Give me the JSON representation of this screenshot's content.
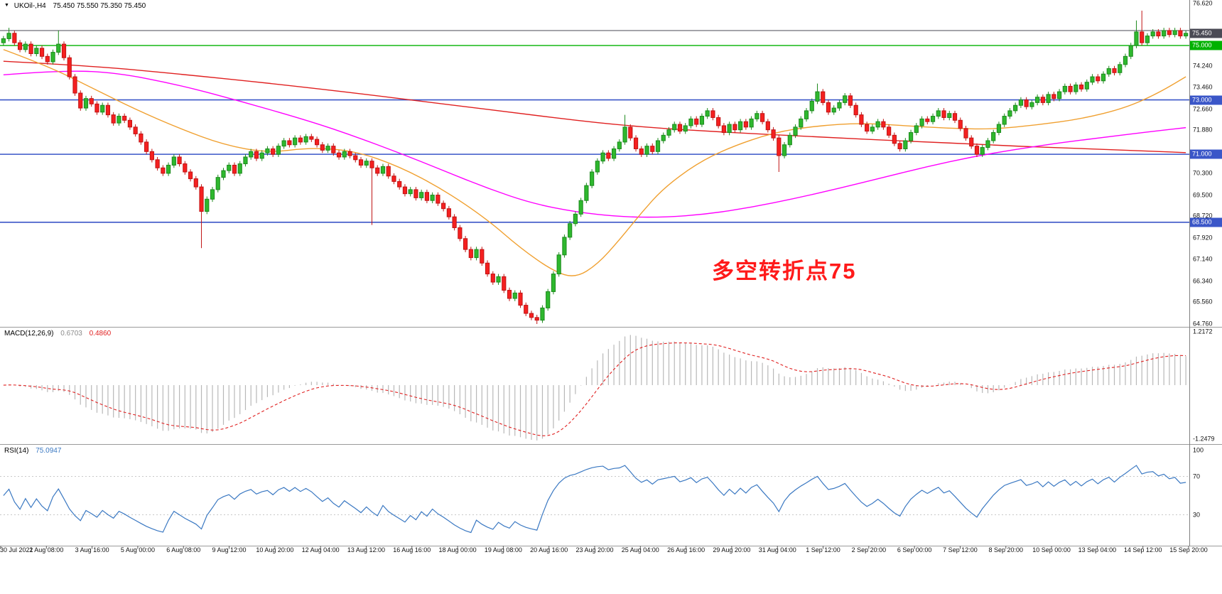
{
  "main_pane": {
    "header": {
      "collapse_icon": "▼",
      "symbol": "UKOil-,H4",
      "ohlc": "75.450 75.550 75.350 75.450"
    },
    "annotation": {
      "text": "多空转折点75"
    }
  },
  "colors": {
    "background": "#ffffff",
    "axis_text": "#111111",
    "separator": "#9a9a9a",
    "axis_border": "#808080",
    "candle_up": "#2eb82e",
    "candle_up_border": "#1d8a1d",
    "candle_down": "#f52020",
    "candle_down_border": "#c01414",
    "current_badge_bg": "#4a4a55",
    "macd_hist": "#b8b8b8",
    "macd_signal": "#e02020",
    "macd_value_main": "#8a8a8a",
    "rsi_line": "#3a78c2",
    "rsi_level": "#c8c8c8",
    "annotation": "#ff1a1a"
  },
  "chart_data": {
    "type": "candlestick",
    "symbol": "UKOil-",
    "timeframe": "H4",
    "x_labels": [
      "30 Jul 2021",
      "2 Aug 08:00",
      "3 Aug 16:00",
      "5 Aug 00:00",
      "6 Aug 08:00",
      "9 Aug 12:00",
      "10 Aug 20:00",
      "12 Aug 04:00",
      "13 Aug 12:00",
      "16 Aug 16:00",
      "18 Aug 00:00",
      "19 Aug 08:00",
      "20 Aug 16:00",
      "23 Aug 20:00",
      "25 Aug 04:00",
      "26 Aug 16:00",
      "29 Aug 20:00",
      "31 Aug 04:00",
      "1 Sep 12:00",
      "2 Sep 20:00",
      "6 Sep 00:00",
      "7 Sep 12:00",
      "8 Sep 20:00",
      "10 Sep 00:00",
      "13 Sep 04:00",
      "14 Sep 12:00",
      "15 Sep 20:00"
    ],
    "price_pane": {
      "ylim": [
        64.76,
        76.62
      ],
      "axis_labels": [
        "76.620",
        "74.240",
        "73.460",
        "72.660",
        "71.880",
        "70.300",
        "69.500",
        "68.720",
        "67.920",
        "67.140",
        "66.340",
        "65.560",
        "64.760"
      ],
      "current_price": 75.45,
      "current_price_label": "75.450",
      "hlines": [
        {
          "price": 75.55,
          "color": "#4a4a55",
          "width": 1,
          "label": null
        },
        {
          "price": 75.0,
          "color": "#00b200",
          "width": 1.4,
          "label": "75.000"
        },
        {
          "price": 73.0,
          "color": "#3a56c8",
          "width": 1.6,
          "label": "73.000"
        },
        {
          "price": 71.0,
          "color": "#3a56c8",
          "width": 1.6,
          "label": "71.000"
        },
        {
          "price": 68.5,
          "color": "#3a56c8",
          "width": 1.6,
          "label": "68.500"
        }
      ],
      "ma_overlays": [
        {
          "name": "slow-ma",
          "color": "#e02020",
          "anchors": [
            [
              0,
              74.42
            ],
            [
              16,
              74.25
            ],
            [
              32,
              73.95
            ],
            [
              48,
              73.62
            ],
            [
              64,
              73.25
            ],
            [
              80,
              72.85
            ],
            [
              96,
              72.45
            ],
            [
              104,
              72.25
            ],
            [
              112,
              72.08
            ],
            [
              120,
              71.95
            ],
            [
              128,
              71.85
            ],
            [
              136,
              71.76
            ],
            [
              144,
              71.68
            ],
            [
              152,
              71.6
            ],
            [
              160,
              71.52
            ],
            [
              168,
              71.45
            ],
            [
              176,
              71.38
            ],
            [
              184,
              71.3
            ],
            [
              192,
              71.24
            ],
            [
              200,
              71.18
            ],
            [
              208,
              71.12
            ],
            [
              215,
              71.06
            ]
          ]
        },
        {
          "name": "mid-ma",
          "color": "#ff00ff",
          "anchors": [
            [
              0,
              73.92
            ],
            [
              10,
              74.08
            ],
            [
              20,
              74.02
            ],
            [
              32,
              73.55
            ],
            [
              44,
              72.9
            ],
            [
              56,
              72.2
            ],
            [
              64,
              71.65
            ],
            [
              72,
              71.05
            ],
            [
              80,
              70.4
            ],
            [
              88,
              69.75
            ],
            [
              96,
              69.2
            ],
            [
              104,
              68.88
            ],
            [
              112,
              68.7
            ],
            [
              120,
              68.68
            ],
            [
              128,
              68.8
            ],
            [
              136,
              69.05
            ],
            [
              144,
              69.38
            ],
            [
              152,
              69.75
            ],
            [
              160,
              70.15
            ],
            [
              168,
              70.55
            ],
            [
              176,
              70.9
            ],
            [
              184,
              71.18
            ],
            [
              192,
              71.42
            ],
            [
              200,
              71.62
            ],
            [
              208,
              71.82
            ],
            [
              215,
              71.98
            ]
          ]
        },
        {
          "name": "fast-ma",
          "color": "#f0a030",
          "anchors": [
            [
              0,
              74.85
            ],
            [
              8,
              74.25
            ],
            [
              16,
              73.45
            ],
            [
              24,
              72.65
            ],
            [
              32,
              71.95
            ],
            [
              40,
              71.35
            ],
            [
              48,
              71.05
            ],
            [
              56,
              71.25
            ],
            [
              64,
              71.12
            ],
            [
              72,
              70.55
            ],
            [
              80,
              69.7
            ],
            [
              88,
              68.6
            ],
            [
              94,
              67.55
            ],
            [
              100,
              66.7
            ],
            [
              104,
              66.45
            ],
            [
              108,
              66.95
            ],
            [
              112,
              67.85
            ],
            [
              116,
              68.85
            ],
            [
              120,
              69.75
            ],
            [
              126,
              70.65
            ],
            [
              132,
              71.25
            ],
            [
              140,
              71.8
            ],
            [
              148,
              72.05
            ],
            [
              156,
              72.15
            ],
            [
              164,
              72.05
            ],
            [
              172,
              71.95
            ],
            [
              180,
              71.92
            ],
            [
              188,
              72.08
            ],
            [
              196,
              72.3
            ],
            [
              204,
              72.7
            ],
            [
              210,
              73.25
            ],
            [
              215,
              73.85
            ]
          ]
        }
      ],
      "candles": {
        "default_wick": 0.1,
        "closes": [
          75.25,
          75.45,
          75.1,
          74.85,
          75.05,
          74.7,
          74.9,
          74.6,
          74.4,
          74.75,
          75.05,
          74.55,
          73.85,
          73.25,
          72.7,
          73.05,
          72.85,
          72.55,
          72.8,
          72.45,
          72.15,
          72.4,
          72.25,
          72.0,
          71.75,
          71.45,
          71.1,
          70.8,
          70.5,
          70.3,
          70.6,
          70.9,
          70.65,
          70.35,
          70.1,
          69.8,
          68.9,
          69.35,
          69.7,
          70.15,
          70.4,
          70.6,
          70.3,
          70.65,
          70.9,
          71.1,
          70.85,
          71.05,
          71.2,
          71.0,
          71.3,
          71.5,
          71.35,
          71.6,
          71.45,
          71.65,
          71.55,
          71.35,
          71.15,
          71.3,
          71.05,
          70.9,
          71.1,
          70.95,
          70.8,
          70.6,
          70.75,
          70.5,
          70.3,
          70.55,
          70.2,
          70.0,
          69.8,
          69.55,
          69.7,
          69.4,
          69.6,
          69.3,
          69.5,
          69.2,
          69.0,
          68.7,
          68.3,
          67.9,
          67.5,
          67.2,
          67.5,
          67.0,
          66.6,
          66.3,
          66.5,
          66.0,
          65.7,
          65.9,
          65.45,
          65.15,
          65.0,
          64.9,
          65.35,
          65.95,
          66.6,
          67.3,
          67.95,
          68.45,
          68.8,
          69.3,
          69.85,
          70.35,
          70.75,
          71.05,
          70.85,
          71.2,
          71.45,
          72.0,
          71.6,
          71.2,
          71.0,
          71.3,
          71.1,
          71.5,
          71.7,
          71.9,
          72.1,
          71.85,
          72.05,
          72.3,
          72.1,
          72.4,
          72.6,
          72.35,
          72.05,
          71.8,
          72.1,
          71.9,
          72.2,
          72.0,
          72.3,
          72.5,
          72.2,
          71.9,
          71.6,
          70.95,
          71.35,
          71.7,
          72.0,
          72.3,
          72.6,
          72.95,
          73.3,
          72.9,
          72.55,
          72.7,
          72.9,
          73.15,
          72.8,
          72.45,
          72.1,
          71.85,
          72.0,
          72.2,
          72.0,
          71.7,
          71.4,
          71.2,
          71.5,
          71.8,
          72.05,
          72.3,
          72.2,
          72.4,
          72.6,
          72.35,
          72.5,
          72.25,
          71.95,
          71.6,
          71.3,
          71.0,
          71.25,
          71.5,
          71.8,
          72.1,
          72.4,
          72.6,
          72.8,
          73.0,
          72.75,
          72.9,
          73.1,
          72.9,
          73.2,
          73.05,
          73.3,
          73.5,
          73.3,
          73.55,
          73.4,
          73.65,
          73.85,
          73.7,
          73.95,
          74.15,
          74.0,
          74.3,
          74.6,
          75.0,
          75.5,
          75.1,
          75.35,
          75.5,
          75.35,
          75.55,
          75.4,
          75.55,
          75.35,
          75.45
        ],
        "wick_overrides": [
          {
            "i": 1,
            "high": 75.65
          },
          {
            "i": 10,
            "high": 75.55
          },
          {
            "i": 36,
            "low": 67.55
          },
          {
            "i": 67,
            "low": 68.4
          },
          {
            "i": 97,
            "low": 64.76
          },
          {
            "i": 113,
            "high": 72.45
          },
          {
            "i": 141,
            "low": 70.35
          },
          {
            "i": 148,
            "high": 73.6
          },
          {
            "i": 206,
            "high": 75.92
          },
          {
            "i": 207,
            "high": 76.28
          }
        ]
      }
    },
    "macd_pane": {
      "label": "MACD(12,26,9)",
      "value_main": "0.6703",
      "value_signal": "0.4860",
      "params": {
        "fast": 12,
        "slow": 26,
        "signal": 9
      },
      "ylim": [
        -1.2479,
        1.2172
      ],
      "axis_top_label": "1.2172",
      "axis_bottom_label": "-1.2479"
    },
    "rsi_pane": {
      "label": "RSI(14)",
      "value": "75.0947",
      "period": 14,
      "levels": [
        70,
        30
      ],
      "axis_labels": [
        "100",
        "70",
        "30"
      ]
    }
  }
}
